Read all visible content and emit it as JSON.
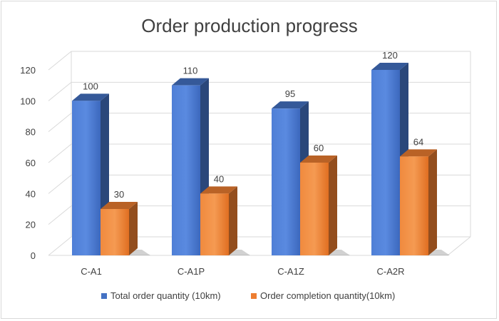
{
  "chart_data": {
    "type": "bar",
    "title": "Order production progress",
    "categories": [
      "C-A1",
      "C-A1P",
      "C-A1Z",
      "C-A2R"
    ],
    "series": [
      {
        "name": "Total order quantity (10km)",
        "values": [
          100,
          110,
          95,
          120
        ],
        "color": "#4472C4"
      },
      {
        "name": "Order completion quantity(10km)",
        "values": [
          30,
          40,
          60,
          64
        ],
        "color": "#ED7D31"
      }
    ],
    "ylim": [
      0,
      120
    ],
    "yticks": [
      0,
      20,
      40,
      60,
      80,
      100,
      120
    ],
    "grid": true,
    "legend_position": "bottom",
    "style": "3d-column"
  }
}
